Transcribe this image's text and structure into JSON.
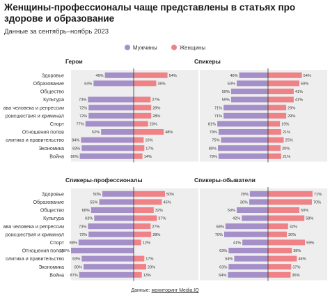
{
  "header": {
    "title": "Женщины-профессионалы чаще представлены в статьях про здорове и образование",
    "subtitle": "Данные за сентябрь–ноябрь 2023"
  },
  "legend": {
    "men": "Мужчины",
    "women": "Женщины"
  },
  "colors": {
    "men": "#a58fc9",
    "women": "#ef8286",
    "panel_bg": "#eeeeee"
  },
  "source": {
    "prefix": "Данные: ",
    "link": "мониторинг Media.IQ"
  },
  "chart_data": [
    {
      "type": "bar",
      "title": "Герои",
      "categories": [
        "Здоровье",
        "Образование",
        "Общество",
        "Культура",
        "ава человека и репрессии",
        "роисшествия и криминал",
        "Спорт",
        "Отношения полов",
        "олитика и правительство",
        "Экономика",
        "Война"
      ],
      "series": [
        {
          "name": "Мужчины",
          "values": [
            46,
            64,
            null,
            73,
            72,
            72,
            77,
            52,
            84,
            83,
            86
          ]
        },
        {
          "name": "Женщины",
          "values": [
            54,
            36,
            null,
            27,
            28,
            28,
            23,
            48,
            16,
            17,
            14
          ]
        }
      ]
    },
    {
      "type": "bar",
      "title": "Спикеры",
      "categories": [
        "Здоровье",
        "Образование",
        "Общество",
        "Культура",
        "ава человека и репрессии",
        "роисшествия и криминал",
        "Спорт",
        "Отношения полов",
        "олитика и правительство",
        "Экономика",
        "Война"
      ],
      "series": [
        {
          "name": "Мужчины",
          "values": [
            46,
            50,
            59,
            59,
            71,
            71,
            81,
            79,
            75,
            80,
            79
          ]
        },
        {
          "name": "Женщины",
          "values": [
            54,
            50,
            41,
            41,
            29,
            29,
            19,
            21,
            25,
            20,
            21
          ]
        }
      ]
    },
    {
      "type": "bar",
      "title": "Спикеры-профессионалы",
      "categories": [
        "Здоровье",
        "Образование",
        "Общество",
        "Культура",
        "ава человека и репрессии",
        "роисшествия и криминал",
        "Спорт",
        "Отношения полов",
        "олитика и правительство",
        "Экономика",
        "Война"
      ],
      "series": [
        {
          "name": "Мужчины",
          "values": [
            50,
            55,
            68,
            63,
            73,
            72,
            88,
            100,
            83,
            80,
            87
          ]
        },
        {
          "name": "Женщины",
          "values": [
            50,
            45,
            32,
            37,
            27,
            28,
            12,
            null,
            17,
            20,
            13
          ]
        }
      ]
    },
    {
      "type": "bar",
      "title": "Спикеры-обыватели",
      "categories": [
        "Здоровье",
        "Образование",
        "Общество",
        "Культура",
        "ава человека и репрессии",
        "роисшествия и криминал",
        "Спорт",
        "Отношения полов",
        "олитика и правительство",
        "Экономика",
        "Война"
      ],
      "series": [
        {
          "name": "Мужчины",
          "values": [
            29,
            30,
            50,
            42,
            68,
            70,
            41,
            63,
            54,
            63,
            64
          ]
        },
        {
          "name": "Женщины",
          "values": [
            71,
            70,
            50,
            58,
            32,
            30,
            59,
            38,
            46,
            37,
            36
          ]
        }
      ]
    }
  ]
}
